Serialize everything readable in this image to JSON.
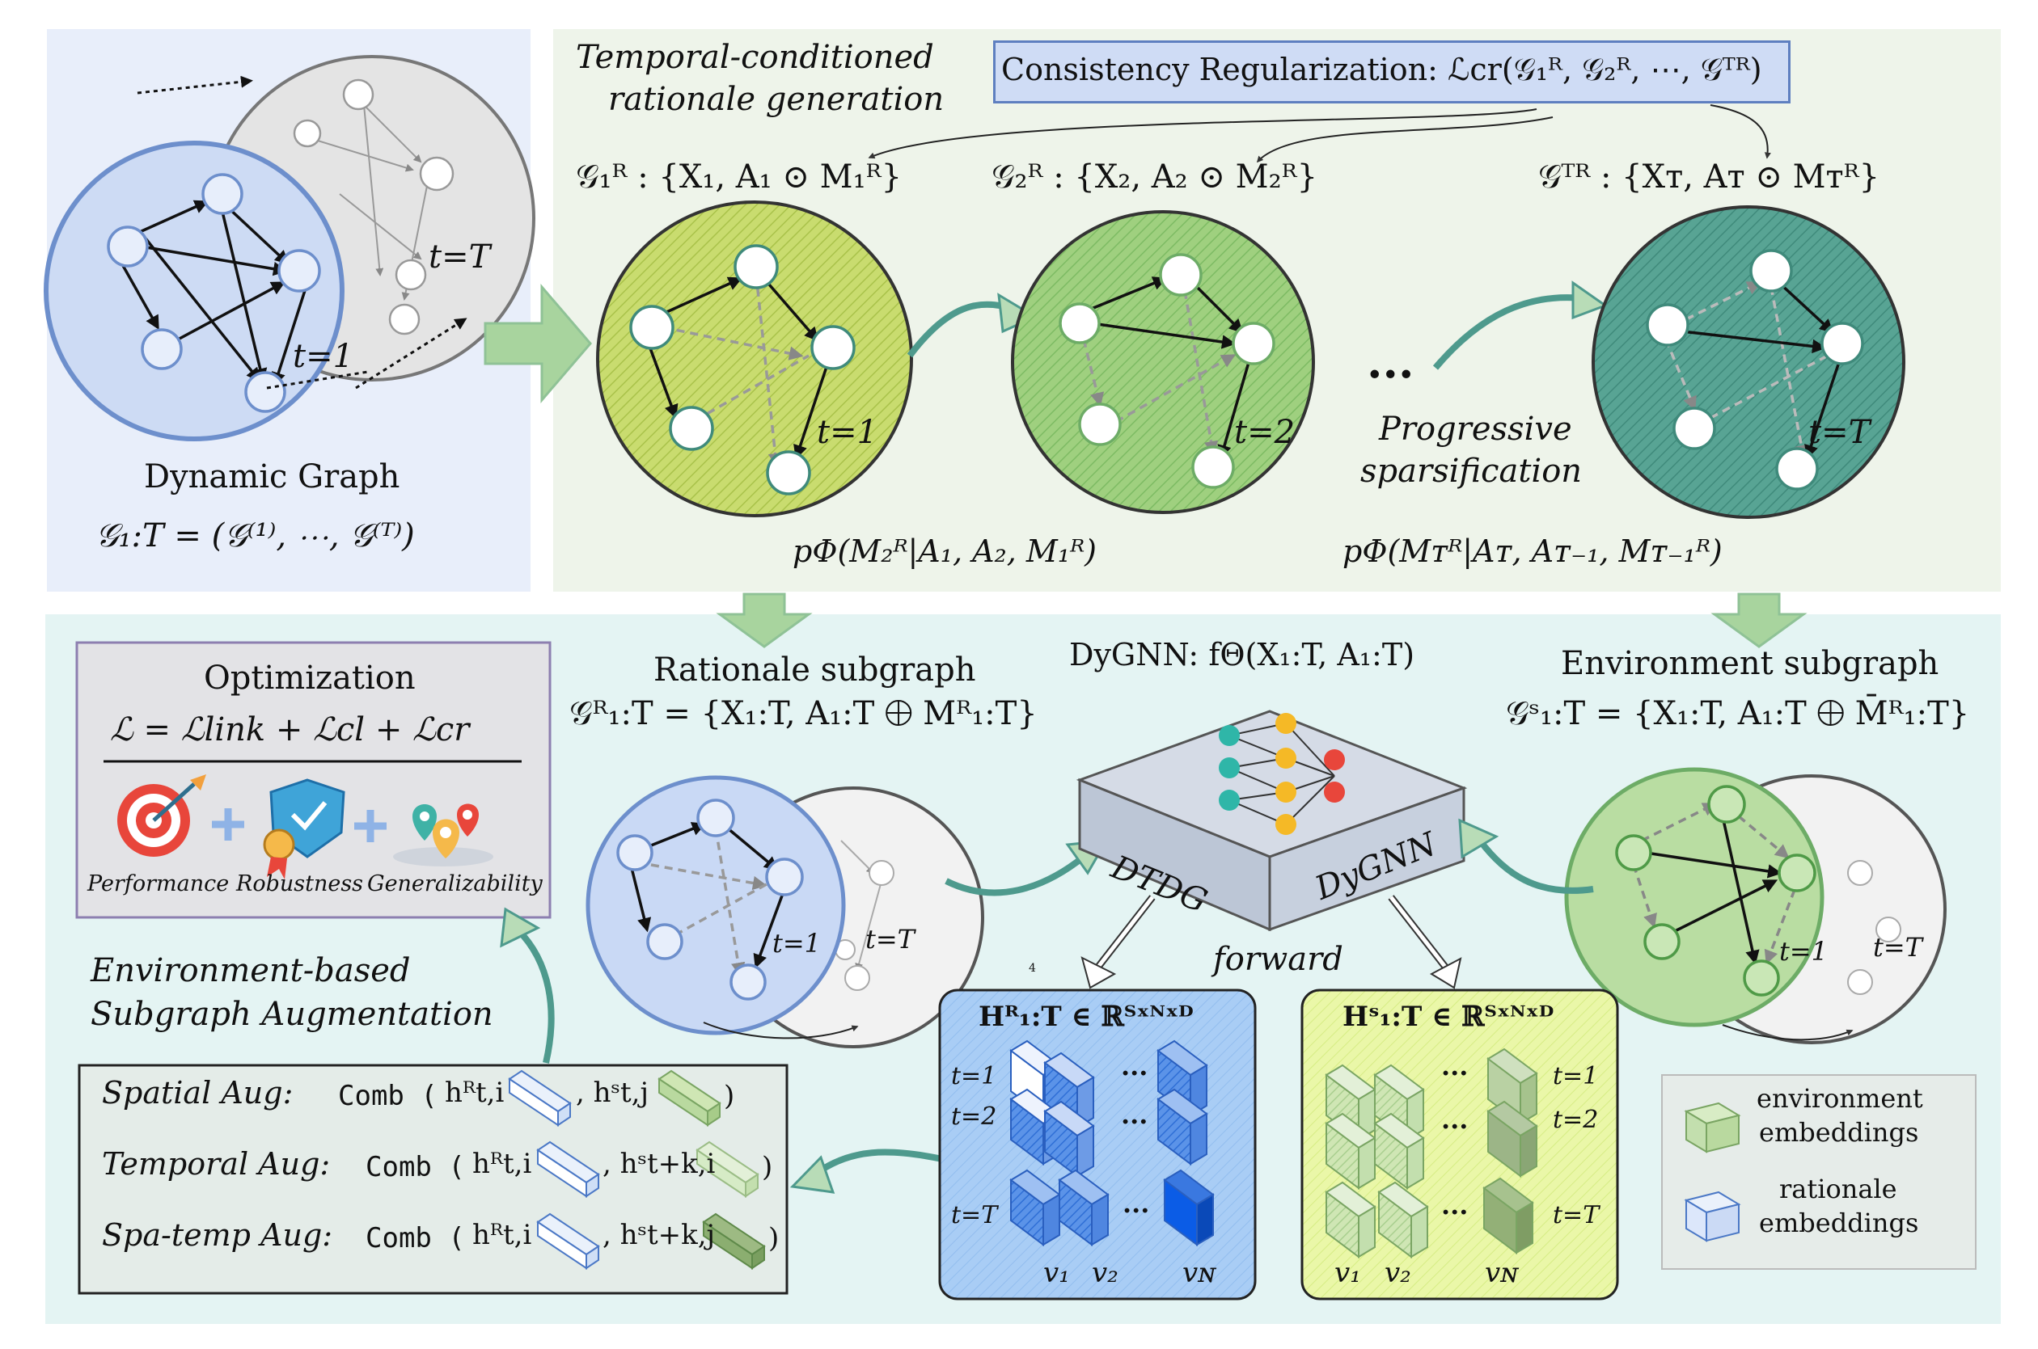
{
  "dynamic_graph": {
    "title": "Dynamic Graph",
    "formula": "𝒢₁:T = (𝒢⁽¹⁾, ⋯, 𝒢⁽ᵀ⁾)",
    "t1": "t=1",
    "tT": "t=T"
  },
  "top": {
    "title_line1": "Temporal-conditioned",
    "title_line2": "rationale generation",
    "consistency": "Consistency Regularization: ℒcr(𝒢₁ᴿ, 𝒢₂ᴿ, ⋯, 𝒢ᵀᴿ)",
    "g1": "𝒢₁ᴿ : {X₁, A₁ ⊙ M₁ᴿ}",
    "g2": "𝒢₂ᴿ : {X₂, A₂ ⊙ M₂ᴿ}",
    "gT": "𝒢ᵀᴿ : {Xᴛ, Aᴛ ⊙ Mᴛᴿ}",
    "t1": "t=1",
    "t2": "t=2",
    "tT": "t=T",
    "dots": "...",
    "prog1": "Progressive",
    "prog2": "sparsification",
    "p1": "pΦ(M₂ᴿ|A₁, A₂, M₁ᴿ)",
    "pT": "pΦ(Mᴛᴿ|Aᴛ, Aᴛ₋₁, Mᴛ₋₁ᴿ)"
  },
  "bottom": {
    "optim_title": "Optimization",
    "optim_formula": "ℒ = ℒlink + ℒcl + ℒcr",
    "perf": "Performance",
    "robust": "Robustness",
    "general": "Generalizability",
    "aug_title1": "Environment-based",
    "aug_title2": "Subgraph Augmentation",
    "spatial_label": "Spatial Aug:",
    "temporal_label": "Temporal Aug:",
    "spatemp_label": "Spa-temp Aug:",
    "comb": "Comb",
    "h_ti": "hᴿt,i",
    "h_tj": "hˢt,j",
    "h_tki": "hˢt+k,i",
    "h_tkj": "hˢt+k,j",
    "rationale_title": "Rationale subgraph",
    "rationale_formula": "𝒢ᴿ₁:T = {X₁:T, A₁:T ⨁ Mᴿ₁:T}",
    "dygnn_title": "DyGNN: fΘ(X₁:T, A₁:T)",
    "dtdg": "DTDG",
    "dygnn": "DyGNN",
    "forward": "forward",
    "env_title": "Environment subgraph",
    "env_formula": "𝒢ˢ₁:T = {X₁:T, A₁:T ⨁ M̄ᴿ₁:T}",
    "hr": "Hᴿ₁:T ∈ ℝᵀˣᴺˣᴰ",
    "hs": "Hˢ₁:T ∈ ℝᵀˣᴺˣᴰ",
    "t1": "t=1",
    "t2": "t=2",
    "tT": "t=T",
    "v1": "v₁",
    "v2": "v₂",
    "vN": "vɴ",
    "tiny4": "4",
    "legend_env1": "environment",
    "legend_env2": "embeddings",
    "legend_rat1": "rationale",
    "legend_rat2": "embeddings"
  },
  "colors": {
    "top_bg": "#eef4ea",
    "bottom_bg": "#e4f4f3",
    "left_bg": "#e7eefa",
    "blue": "#7b9bd0",
    "green_light": "#c7db6e",
    "green_mid": "#9ccf7f",
    "teal": "#4e9a8d",
    "arrow": "#8fc296"
  }
}
